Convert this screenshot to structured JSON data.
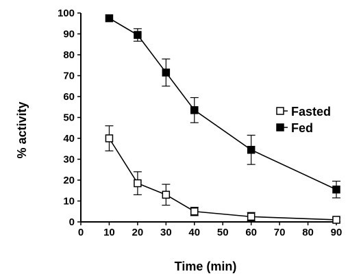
{
  "chart_data": {
    "type": "line",
    "xlabel": "Time (min)",
    "ylabel": "% activity",
    "xlim": [
      0,
      90
    ],
    "ylim": [
      0,
      100
    ],
    "xticks": [
      "0",
      "10",
      "20",
      "30",
      "40",
      "50",
      "60",
      "70",
      "80",
      "90"
    ],
    "yticks": [
      "0",
      "10",
      "20",
      "30",
      "40",
      "50",
      "60",
      "70",
      "80",
      "90",
      "100"
    ],
    "grid": false,
    "legend_position": "right",
    "series": [
      {
        "name": "Fasted",
        "marker": "open-square",
        "x": [
          10,
          20,
          30,
          40,
          60,
          90
        ],
        "y": [
          40,
          18.5,
          13,
          5,
          2.5,
          1
        ],
        "err": [
          6,
          5.5,
          5,
          2,
          2,
          1
        ]
      },
      {
        "name": "Fed",
        "marker": "filled-square",
        "x": [
          10,
          20,
          30,
          40,
          60,
          90
        ],
        "y": [
          97.5,
          89.5,
          71.5,
          53.5,
          34.5,
          15.5
        ],
        "err": [
          0,
          3,
          6.5,
          6,
          7,
          4
        ]
      }
    ]
  }
}
